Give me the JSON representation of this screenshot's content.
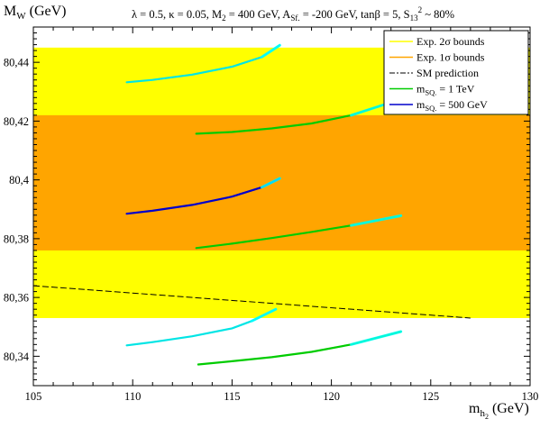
{
  "chart_data": {
    "type": "line",
    "title": "λ = 0.5, κ = 0.05, M₂ = 400 GeV, A_Sf. = -200 GeV, tanβ = 5, S₁₃² ~ 80%",
    "title_parts": {
      "p1": "λ = 0.5, κ = 0.05, M",
      "p1_sub": "2",
      "p2": " = 400 GeV, A",
      "p2_sub": "Sf.",
      "p3": " = -200 GeV, tanβ = 5, S",
      "p3_sub": "13",
      "p3_sup": "2",
      "p4": " ~ 80%"
    },
    "ylabel": {
      "main": "M",
      "sub": "W",
      "unit": " (GeV)"
    },
    "xlabel": {
      "main": "m",
      "sub": "h",
      "subsub": "2",
      "unit": " (GeV)"
    },
    "xlim": [
      105,
      130
    ],
    "ylim": [
      80.33,
      80.452
    ],
    "x_ticks": [
      105,
      110,
      115,
      120,
      125,
      130
    ],
    "x_tick_labels": [
      "105",
      "110",
      "115",
      "120",
      "125",
      "130"
    ],
    "y_ticks": [
      80.34,
      80.36,
      80.38,
      80.4,
      80.42,
      80.44
    ],
    "y_tick_labels": [
      "80,34",
      "80,36",
      "80,38",
      "80,4",
      "80,42",
      "80,44"
    ],
    "bands": [
      {
        "name": "Exp. 2σ bounds",
        "y_range": [
          80.353,
          80.445
        ],
        "color": "#ffff00"
      },
      {
        "name": "Exp. 1σ bounds",
        "y_range": [
          80.376,
          80.422
        ],
        "color": "#ffa500"
      }
    ],
    "sm_prediction": {
      "name": "SM prediction",
      "x": [
        105,
        127
      ],
      "y": [
        80.364,
        80.353
      ]
    },
    "series": [
      {
        "name": "m_SQ. = 1 TeV",
        "color": "#00cc00",
        "highlight": "#00ffff",
        "curves": [
          {
            "x": [
              113.2,
              115.0,
              117.0,
              119.0,
              121.0,
              122.6
            ],
            "y": [
              80.4157,
              80.4163,
              80.4175,
              80.4192,
              80.422,
              80.4255
            ]
          },
          {
            "x": [
              113.2,
              115.0,
              117.0,
              119.0,
              121.0,
              123.5
            ],
            "y": [
              80.3768,
              80.3783,
              80.3802,
              80.3823,
              80.3845,
              80.3878
            ]
          },
          {
            "x": [
              113.3,
              115.0,
              117.0,
              119.0,
              121.0,
              123.5
            ],
            "y": [
              80.3372,
              80.3383,
              80.3397,
              80.3415,
              80.344,
              80.3484
            ]
          }
        ]
      },
      {
        "name": "m_SQ. = 500 GeV",
        "color": "#0000cc",
        "highlight": "#00ffff",
        "curves": [
          {
            "x": [
              109.7,
              111.0,
              113.0,
              115.0,
              116.5,
              117.4
            ],
            "y": [
              80.4332,
              80.434,
              80.4358,
              80.4385,
              80.4418,
              80.4458
            ]
          },
          {
            "x": [
              109.7,
              111.0,
              113.0,
              115.0,
              116.5,
              117.4
            ],
            "y": [
              80.3885,
              80.3895,
              80.3915,
              80.3943,
              80.3975,
              80.4005
            ]
          },
          {
            "x": [
              109.7,
              111.0,
              113.0,
              115.0,
              116.0,
              117.2
            ],
            "y": [
              80.3437,
              80.3448,
              80.3468,
              80.3495,
              80.352,
              80.356
            ]
          }
        ]
      }
    ],
    "legend": {
      "placement": "top-right",
      "entries": [
        {
          "key": "band2",
          "label": "Exp. 2σ bounds",
          "color": "#ffff00",
          "style": "solid"
        },
        {
          "key": "band1",
          "label": "Exp. 1σ bounds",
          "color": "#ffa500",
          "style": "solid"
        },
        {
          "key": "sm",
          "label": "SM prediction",
          "color": "#000000",
          "style": "dashdot"
        },
        {
          "key": "tev",
          "label_main": "m",
          "label_sub": "SQ.",
          "label_rest": " = 1 TeV",
          "color": "#00cc00",
          "style": "solid"
        },
        {
          "key": "gev",
          "label_main": "m",
          "label_sub": "SQ.",
          "label_rest": " = 500 GeV",
          "color": "#0000cc",
          "style": "solid"
        }
      ]
    },
    "grid": false
  }
}
